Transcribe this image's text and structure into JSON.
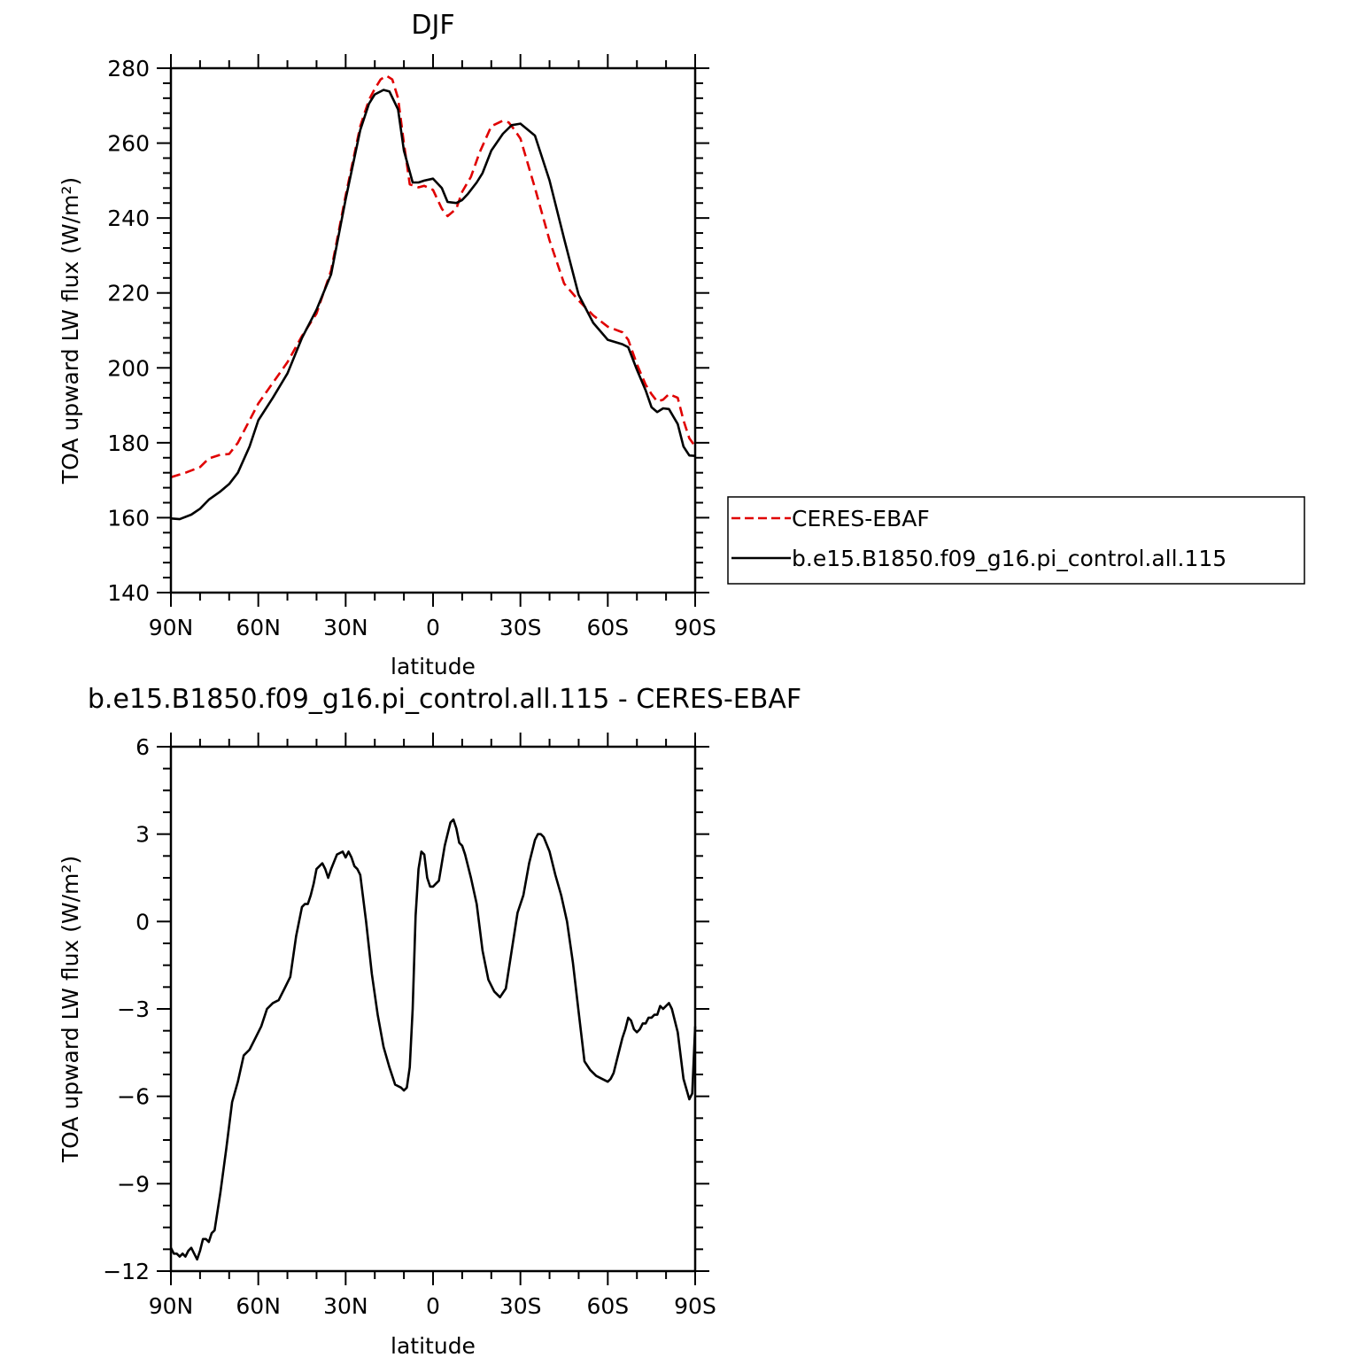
{
  "chart_data": [
    {
      "type": "line",
      "title": "DJF",
      "xlabel": "latitude",
      "ylabel": "TOA upward LW flux (W/m²)",
      "xlim": [
        90,
        -90
      ],
      "ylim": [
        140,
        280
      ],
      "xticks": [
        {
          "value": 90,
          "label": "90N"
        },
        {
          "value": 60,
          "label": "60N"
        },
        {
          "value": 30,
          "label": "30N"
        },
        {
          "value": 0,
          "label": "0"
        },
        {
          "value": -30,
          "label": "30S"
        },
        {
          "value": -60,
          "label": "60S"
        },
        {
          "value": -90,
          "label": "90S"
        }
      ],
      "yticks": [
        {
          "value": 140,
          "label": "140"
        },
        {
          "value": 160,
          "label": "160"
        },
        {
          "value": 180,
          "label": "180"
        },
        {
          "value": 200,
          "label": "200"
        },
        {
          "value": 220,
          "label": "220"
        },
        {
          "value": 240,
          "label": "240"
        },
        {
          "value": 260,
          "label": "260"
        },
        {
          "value": 280,
          "label": "280"
        }
      ],
      "legend": "right",
      "series": [
        {
          "name": "CERES-EBAF",
          "color": "#e00000",
          "style": "dashed",
          "x": [
            90,
            85,
            80,
            77,
            73,
            70,
            67,
            63,
            60,
            55,
            50,
            45,
            40,
            35,
            30,
            25,
            22,
            20,
            18,
            16,
            14,
            12,
            10,
            8,
            5,
            3,
            0,
            -3,
            -5,
            -8,
            -10,
            -13,
            -16,
            -20,
            -24,
            -26,
            -28,
            -30,
            -35,
            -40,
            -45,
            -50,
            -55,
            -60,
            -65,
            -67,
            -70,
            -73,
            -75,
            -77,
            -79,
            -81,
            -84,
            -86,
            -88,
            -90
          ],
          "values": [
            170.8,
            172,
            173.5,
            175.8,
            176.8,
            177,
            180,
            186,
            190.5,
            196,
            201.5,
            208.5,
            214.5,
            226,
            246,
            264.5,
            271.5,
            274.5,
            277,
            278,
            277,
            272,
            260,
            249,
            248.2,
            248.6,
            247.5,
            242.5,
            240.5,
            242.5,
            247,
            251,
            257.5,
            264.5,
            266,
            265.5,
            263.5,
            261.2,
            248,
            234,
            222.5,
            218,
            214,
            211,
            209.5,
            207.5,
            201,
            195.5,
            193,
            191,
            191.5,
            193,
            192,
            186,
            181.2,
            179
          ]
        },
        {
          "name": "b.e15.B1850.f09_g16.pi_control.all.115",
          "color": "#000000",
          "style": "solid",
          "x": [
            90,
            87,
            83,
            80,
            77,
            73,
            70,
            67,
            63,
            60,
            55,
            50,
            45,
            40,
            35,
            30,
            25,
            22,
            20,
            17,
            15,
            12,
            10,
            7,
            5,
            3,
            0,
            -3,
            -5,
            -8,
            -10,
            -12,
            -15,
            -17,
            -20,
            -24,
            -27,
            -30,
            -35,
            -40,
            -45,
            -50,
            -55,
            -60,
            -65,
            -67,
            -70,
            -73,
            -75,
            -77,
            -79,
            -81,
            -84,
            -86,
            -88,
            -90
          ],
          "values": [
            159.8,
            159.6,
            160.8,
            162.4,
            164.8,
            167,
            169,
            172,
            179,
            186,
            192,
            198.5,
            208,
            215.5,
            225,
            245,
            263.5,
            270.5,
            273,
            274.2,
            273.8,
            269,
            258,
            249.5,
            249.5,
            250,
            250.5,
            248,
            244.3,
            244,
            244.8,
            246.5,
            249.5,
            252,
            258,
            262.5,
            264.8,
            265.2,
            262,
            250,
            234.5,
            219.5,
            212,
            207.5,
            206.3,
            205.5,
            199.5,
            194,
            189.5,
            188.2,
            189.2,
            189,
            185,
            179,
            176.6,
            176.5
          ]
        }
      ]
    },
    {
      "type": "line",
      "title": "b.e15.B1850.f09_g16.pi_control.all.115 - CERES-EBAF",
      "xlabel": "latitude",
      "ylabel": "TOA upward LW flux (W/m²)",
      "xlim": [
        90,
        -90
      ],
      "ylim": [
        -12,
        6
      ],
      "xticks": [
        {
          "value": 90,
          "label": "90N"
        },
        {
          "value": 60,
          "label": "60N"
        },
        {
          "value": 30,
          "label": "30N"
        },
        {
          "value": 0,
          "label": "0"
        },
        {
          "value": -30,
          "label": "30S"
        },
        {
          "value": -60,
          "label": "60S"
        },
        {
          "value": -90,
          "label": "90S"
        }
      ],
      "yticks": [
        {
          "value": -12,
          "label": "−12"
        },
        {
          "value": -9,
          "label": "−9"
        },
        {
          "value": -6,
          "label": "−6"
        },
        {
          "value": -3,
          "label": "−3"
        },
        {
          "value": 0,
          "label": "0"
        },
        {
          "value": 3,
          "label": "3"
        },
        {
          "value": 6,
          "label": "6"
        }
      ],
      "series": [
        {
          "name": "",
          "color": "#000000",
          "style": "solid",
          "x": [
            90,
            89,
            88,
            87,
            86,
            85,
            84,
            83,
            82,
            81,
            80,
            79,
            78,
            77,
            76,
            75,
            73,
            71,
            69,
            67,
            65,
            63,
            61,
            59,
            57,
            55,
            53,
            51,
            49,
            47,
            45,
            44,
            43,
            42,
            41,
            40,
            38,
            37,
            36,
            35,
            33,
            31,
            30,
            29,
            28,
            27,
            26,
            25,
            23,
            21,
            19,
            17,
            15,
            13,
            11,
            10,
            9,
            8,
            7,
            6,
            5,
            4,
            3,
            2,
            1,
            0,
            -1,
            -2,
            -3,
            -4,
            -5,
            -6,
            -7,
            -8,
            -9,
            -10,
            -11,
            -13,
            -15,
            -17,
            -19,
            -21,
            -23,
            -25,
            -27,
            -29,
            -31,
            -33,
            -35,
            -36,
            -37,
            -38,
            -40,
            -42,
            -44,
            -46,
            -48,
            -50,
            -52,
            -54,
            -56,
            -58,
            -60,
            -61,
            -62,
            -63,
            -64,
            -65,
            -66,
            -67,
            -68,
            -69,
            -70,
            -71,
            -72,
            -73,
            -74,
            -75,
            -76,
            -77,
            -78,
            -79,
            -80,
            -81,
            -82,
            -84,
            -86,
            -88,
            -89,
            -90
          ],
          "values": [
            -11.2,
            -11.4,
            -11.4,
            -11.5,
            -11.4,
            -11.5,
            -11.3,
            -11.2,
            -11.4,
            -11.6,
            -11.3,
            -10.9,
            -10.9,
            -11.0,
            -10.7,
            -10.6,
            -9.3,
            -7.8,
            -6.2,
            -5.5,
            -4.6,
            -4.4,
            -4.0,
            -3.6,
            -3.0,
            -2.8,
            -2.7,
            -2.3,
            -1.9,
            -0.5,
            0.5,
            0.6,
            0.6,
            0.9,
            1.3,
            1.8,
            2.0,
            1.8,
            1.5,
            1.8,
            2.3,
            2.4,
            2.2,
            2.4,
            2.2,
            1.9,
            1.8,
            1.6,
            0.0,
            -1.8,
            -3.2,
            -4.3,
            -5.0,
            -5.6,
            -5.7,
            -5.8,
            -5.7,
            -5.0,
            -3.0,
            0.2,
            1.8,
            2.4,
            2.3,
            1.5,
            1.2,
            1.2,
            1.3,
            1.4,
            2.0,
            2.6,
            3.0,
            3.4,
            3.5,
            3.2,
            2.7,
            2.6,
            2.3,
            1.5,
            0.6,
            -1.0,
            -2.0,
            -2.4,
            -2.6,
            -2.3,
            -1.0,
            0.3,
            0.9,
            2.0,
            2.8,
            3.0,
            3.0,
            2.9,
            2.4,
            1.6,
            0.9,
            0.0,
            -1.4,
            -3.1,
            -4.8,
            -5.1,
            -5.3,
            -5.4,
            -5.5,
            -5.4,
            -5.2,
            -4.8,
            -4.4,
            -4.0,
            -3.7,
            -3.3,
            -3.4,
            -3.7,
            -3.8,
            -3.7,
            -3.5,
            -3.5,
            -3.3,
            -3.3,
            -3.2,
            -3.2,
            -2.9,
            -3.0,
            -2.9,
            -2.8,
            -3.0,
            -3.8,
            -5.4,
            -6.1,
            -5.9,
            -3.6
          ]
        }
      ]
    }
  ]
}
